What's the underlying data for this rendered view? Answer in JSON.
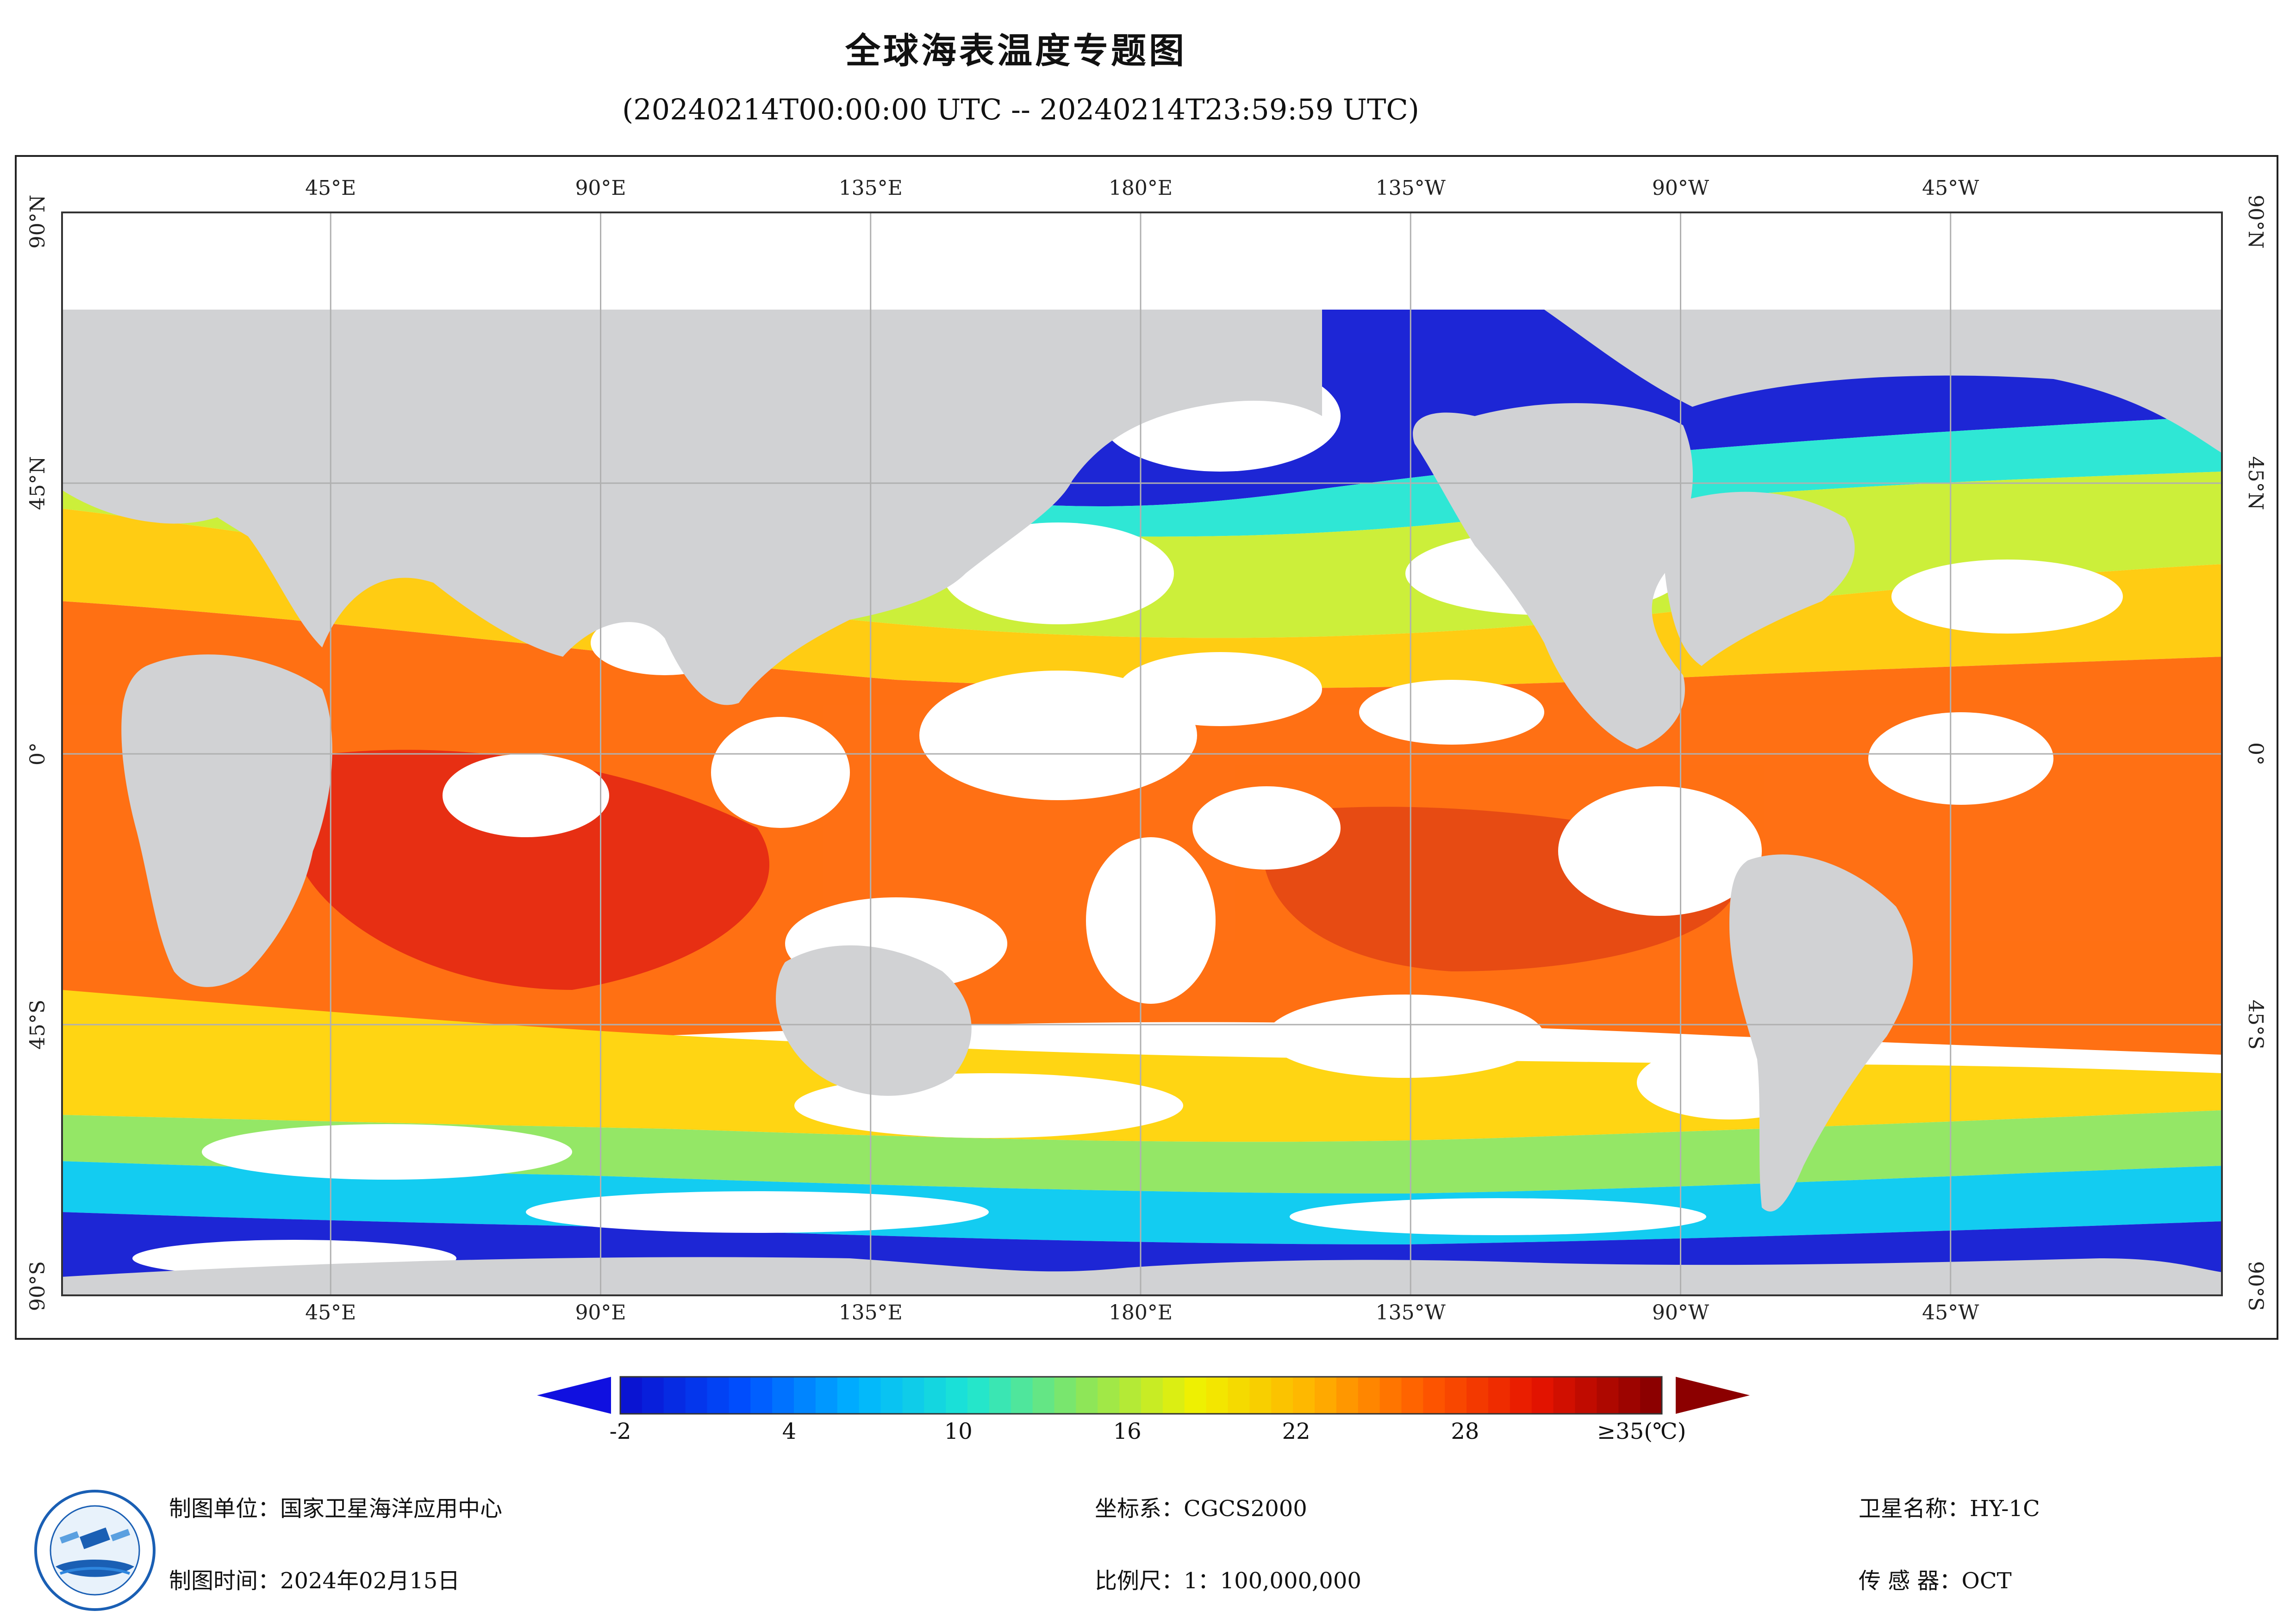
{
  "title": "全球海表温度专题图",
  "subtitle": "(20240214T00:00:00 UTC -- 20240214T23:59:59 UTC)",
  "map": {
    "top_labels": [
      "45°E",
      "90°E",
      "135°E",
      "180°E",
      "135°W",
      "90°W",
      "45°W"
    ],
    "bottom_labels": [
      "45°E",
      "90°E",
      "135°E",
      "180°E",
      "135°W",
      "90°W",
      "45°W"
    ],
    "left_labels": [
      "90°N",
      "45°N",
      "0°",
      "45°S",
      "90°S"
    ],
    "right_labels": [
      "90°N",
      "45°N",
      "0°",
      "45°S",
      "90°S"
    ],
    "colors": {
      "land": "#d1d2d4",
      "cloud": "#ffffff",
      "graticule": "#b0b0b0"
    }
  },
  "colorbar": {
    "tick_labels": [
      "-2",
      "4",
      "10",
      "16",
      "22",
      "28",
      "≥35(℃)"
    ],
    "min": -2,
    "max": 35,
    "colors": [
      "#0a14d2",
      "#0050ff",
      "#00b4ff",
      "#1ee6d2",
      "#8ce65a",
      "#f0f000",
      "#ffb400",
      "#ff5a00",
      "#e61400",
      "#8c0000"
    ]
  },
  "footer": {
    "unit": "制图单位：国家卫星海洋应用中心",
    "time": "制图时间：2024年02月15日",
    "coord": "坐标系：CGCS2000",
    "scale": "比例尺：1：100,000,000",
    "satellite": "卫星名称：HY-1C",
    "sensor": "传 感 器：OCT"
  }
}
